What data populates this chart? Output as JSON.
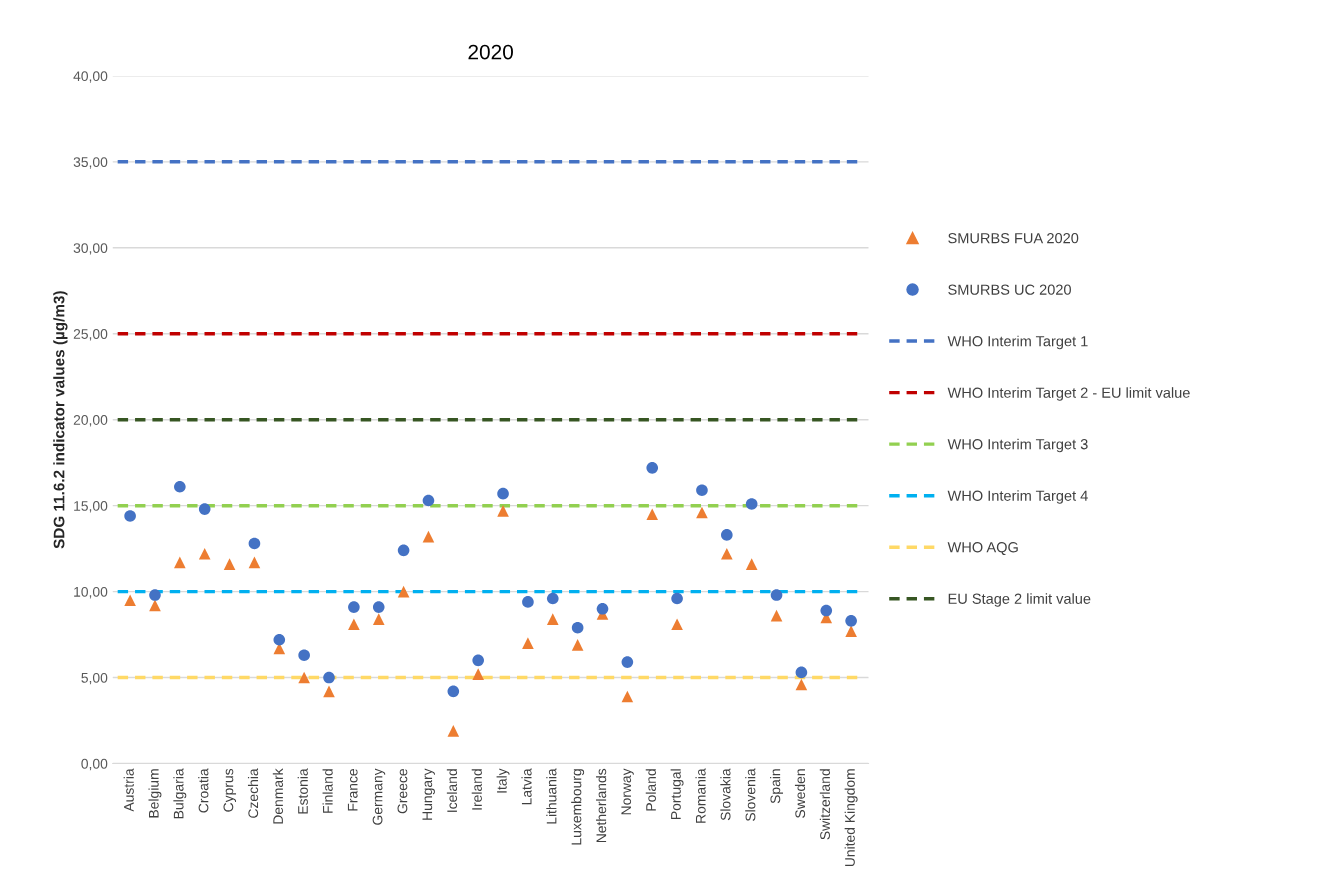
{
  "chart_data": {
    "type": "scatter",
    "title": "2020",
    "ylabel": "SDG 11.6.2 indicator values (µg/m3)",
    "categories": [
      "Austria",
      "Belgium",
      "Bulgaria",
      "Croatia",
      "Cyprus",
      "Czechia",
      "Denmark",
      "Estonia",
      "Finland",
      "France",
      "Germany",
      "Greece",
      "Hungary",
      "Iceland",
      "Ireland",
      "Italy",
      "Latvia",
      "Lithuania",
      "Luxembourg",
      "Netherlands",
      "Norway",
      "Poland",
      "Portugal",
      "Romania",
      "Slovakia",
      "Slovenia",
      "Spain",
      "Sweden",
      "Switzerland",
      "United Kingdom"
    ],
    "series": [
      {
        "name": "SMURBS FUA 2020",
        "color": "#ed7d31",
        "marker": "triangle",
        "values": [
          9.5,
          9.2,
          11.7,
          12.2,
          11.6,
          11.7,
          6.7,
          5.0,
          4.2,
          8.1,
          8.4,
          10.0,
          13.2,
          1.9,
          5.2,
          14.7,
          7.0,
          8.4,
          6.9,
          8.7,
          3.9,
          14.5,
          8.1,
          14.6,
          12.2,
          11.6,
          8.6,
          4.6,
          8.5,
          7.7
        ]
      },
      {
        "name": "SMURBS UC 2020",
        "color": "#4472c4",
        "marker": "circle",
        "values": [
          14.4,
          9.8,
          16.1,
          14.8,
          null,
          12.8,
          7.2,
          6.3,
          5.0,
          9.1,
          9.1,
          12.4,
          15.3,
          4.2,
          6.0,
          15.7,
          9.4,
          9.6,
          7.9,
          9.0,
          5.9,
          17.2,
          9.6,
          15.9,
          13.3,
          15.1,
          9.8,
          5.3,
          8.9,
          8.3
        ]
      }
    ],
    "ref_lines": [
      {
        "axis": "y",
        "value": 35,
        "label": "WHO Interim Target 1",
        "color": "#4472c4",
        "line_style": "dashed"
      },
      {
        "axis": "y",
        "value": 25,
        "label": "WHO Interim Target 2 - EU limit value",
        "color": "#c00000",
        "line_style": "dashed"
      },
      {
        "axis": "y",
        "value": 15,
        "label": "WHO Interim Target 3",
        "color": "#92d050",
        "line_style": "dashed"
      },
      {
        "axis": "y",
        "value": 10,
        "label": "WHO Interim Target 4",
        "color": "#00b0f0",
        "line_style": "dashed"
      },
      {
        "axis": "y",
        "value": 5,
        "label": "WHO AQG",
        "color": "#ffd966",
        "line_style": "dashed"
      },
      {
        "axis": "y",
        "value": 20,
        "label": "EU Stage 2 limit value",
        "color": "#375623",
        "line_style": "dashed"
      }
    ],
    "ylim": [
      0,
      40
    ],
    "yticks": [
      {
        "value": 0,
        "label": "0,00"
      },
      {
        "value": 5,
        "label": "5,00"
      },
      {
        "value": 10,
        "label": "10,00"
      },
      {
        "value": 15,
        "label": "15,00"
      },
      {
        "value": 20,
        "label": "20,00"
      },
      {
        "value": 25,
        "label": "25,00"
      },
      {
        "value": 30,
        "label": "30,00"
      },
      {
        "value": 35,
        "label": "35,00"
      },
      {
        "value": 40,
        "label": "40,00"
      }
    ],
    "grid": "y",
    "legend": "right"
  }
}
